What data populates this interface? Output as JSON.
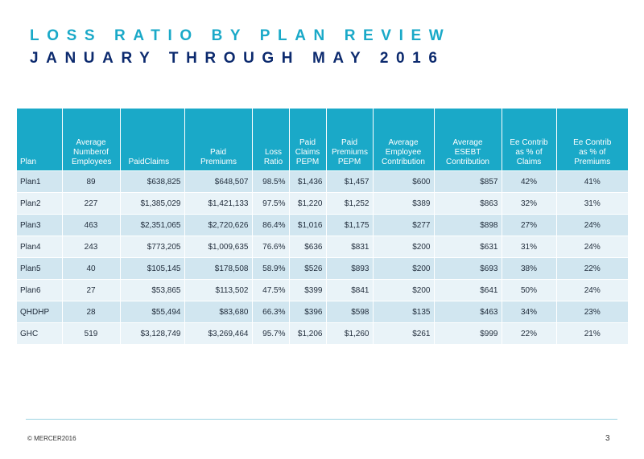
{
  "title": {
    "line1": "LOSS RATIO BY PLAN REVIEW",
    "line2": "JANUARY THROUGH MAY 2016"
  },
  "colors": {
    "accent": "#1aa9c8",
    "title_dark": "#0c2a6e",
    "row_odd": "#d1e6f0",
    "row_even": "#e9f3f8"
  },
  "table": {
    "headers": [
      "Plan",
      "Average Numberof Employees",
      "PaidClaims",
      "Paid Premiums",
      "Loss Ratio",
      "Paid Claims PEPM",
      "Paid Premiums PEPM",
      "Average Employee Contribution",
      "Average ESEBT Contribution",
      "Ee  Contrib as  %  of Claims",
      "Ee  Contrib as  %  of Premiums"
    ],
    "rows": [
      [
        "Plan1",
        "89",
        "$638,825",
        "$648,507",
        "98.5%",
        "$1,436",
        "$1,457",
        "$600",
        "$857",
        "42%",
        "41%"
      ],
      [
        "Plan2",
        "227",
        "$1,385,029",
        "$1,421,133",
        "97.5%",
        "$1,220",
        "$1,252",
        "$389",
        "$863",
        "32%",
        "31%"
      ],
      [
        "Plan3",
        "463",
        "$2,351,065",
        "$2,720,626",
        "86.4%",
        "$1,016",
        "$1,175",
        "$277",
        "$898",
        "27%",
        "24%"
      ],
      [
        "Plan4",
        "243",
        "$773,205",
        "$1,009,635",
        "76.6%",
        "$636",
        "$831",
        "$200",
        "$631",
        "31%",
        "24%"
      ],
      [
        "Plan5",
        "40",
        "$105,145",
        "$178,508",
        "58.9%",
        "$526",
        "$893",
        "$200",
        "$693",
        "38%",
        "22%"
      ],
      [
        "Plan6",
        "27",
        "$53,865",
        "$113,502",
        "47.5%",
        "$399",
        "$841",
        "$200",
        "$641",
        "50%",
        "24%"
      ],
      [
        "QHDHP",
        "28",
        "$55,494",
        "$83,680",
        "66.3%",
        "$396",
        "$598",
        "$135",
        "$463",
        "34%",
        "23%"
      ],
      [
        "GHC",
        "519",
        "$3,128,749",
        "$3,269,464",
        "95.7%",
        "$1,206",
        "$1,260",
        "$261",
        "$999",
        "22%",
        "21%"
      ]
    ]
  },
  "footer": {
    "copyright": "©  MERCER2016",
    "page_number": "3"
  }
}
